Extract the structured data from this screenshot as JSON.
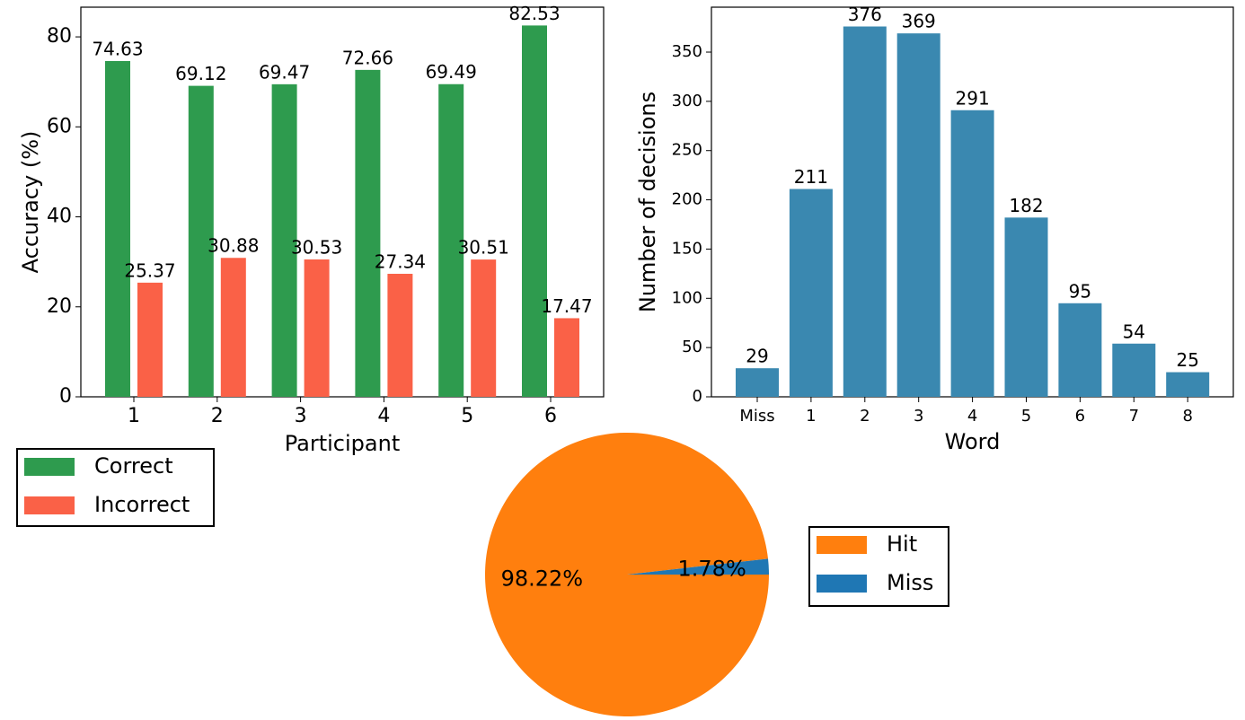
{
  "chart_data": [
    {
      "type": "bar",
      "xlabel": "Participant",
      "ylabel": "Accuracy (%)",
      "categories": [
        "1",
        "2",
        "3",
        "4",
        "5",
        "6"
      ],
      "series": [
        {
          "name": "Correct",
          "color": "#2e9b4e",
          "values": [
            74.63,
            69.12,
            69.47,
            72.66,
            69.49,
            82.53
          ]
        },
        {
          "name": "Incorrect",
          "color": "#fa6147",
          "values": [
            25.37,
            30.88,
            30.53,
            27.34,
            30.51,
            17.47
          ]
        }
      ],
      "ylim": [
        0,
        86.6
      ],
      "yticks": [
        0,
        20,
        40,
        60,
        80
      ]
    },
    {
      "type": "bar",
      "xlabel": "Word",
      "ylabel": "Number of decisions",
      "categories": [
        "Miss",
        "1",
        "2",
        "3",
        "4",
        "5",
        "6",
        "7",
        "8"
      ],
      "values": [
        29,
        211,
        376,
        369,
        291,
        182,
        95,
        54,
        25
      ],
      "color": "#3a88b0",
      "ylim": [
        0,
        395.6
      ],
      "yticks": [
        0,
        50,
        100,
        150,
        200,
        250,
        300,
        350
      ]
    },
    {
      "type": "pie",
      "categories": [
        "Hit",
        "Miss"
      ],
      "values": [
        98.22,
        1.78
      ],
      "value_labels": [
        "98.22%",
        "1.78%"
      ],
      "colors": [
        "#ff7f0e",
        "#1f77b4"
      ]
    }
  ]
}
